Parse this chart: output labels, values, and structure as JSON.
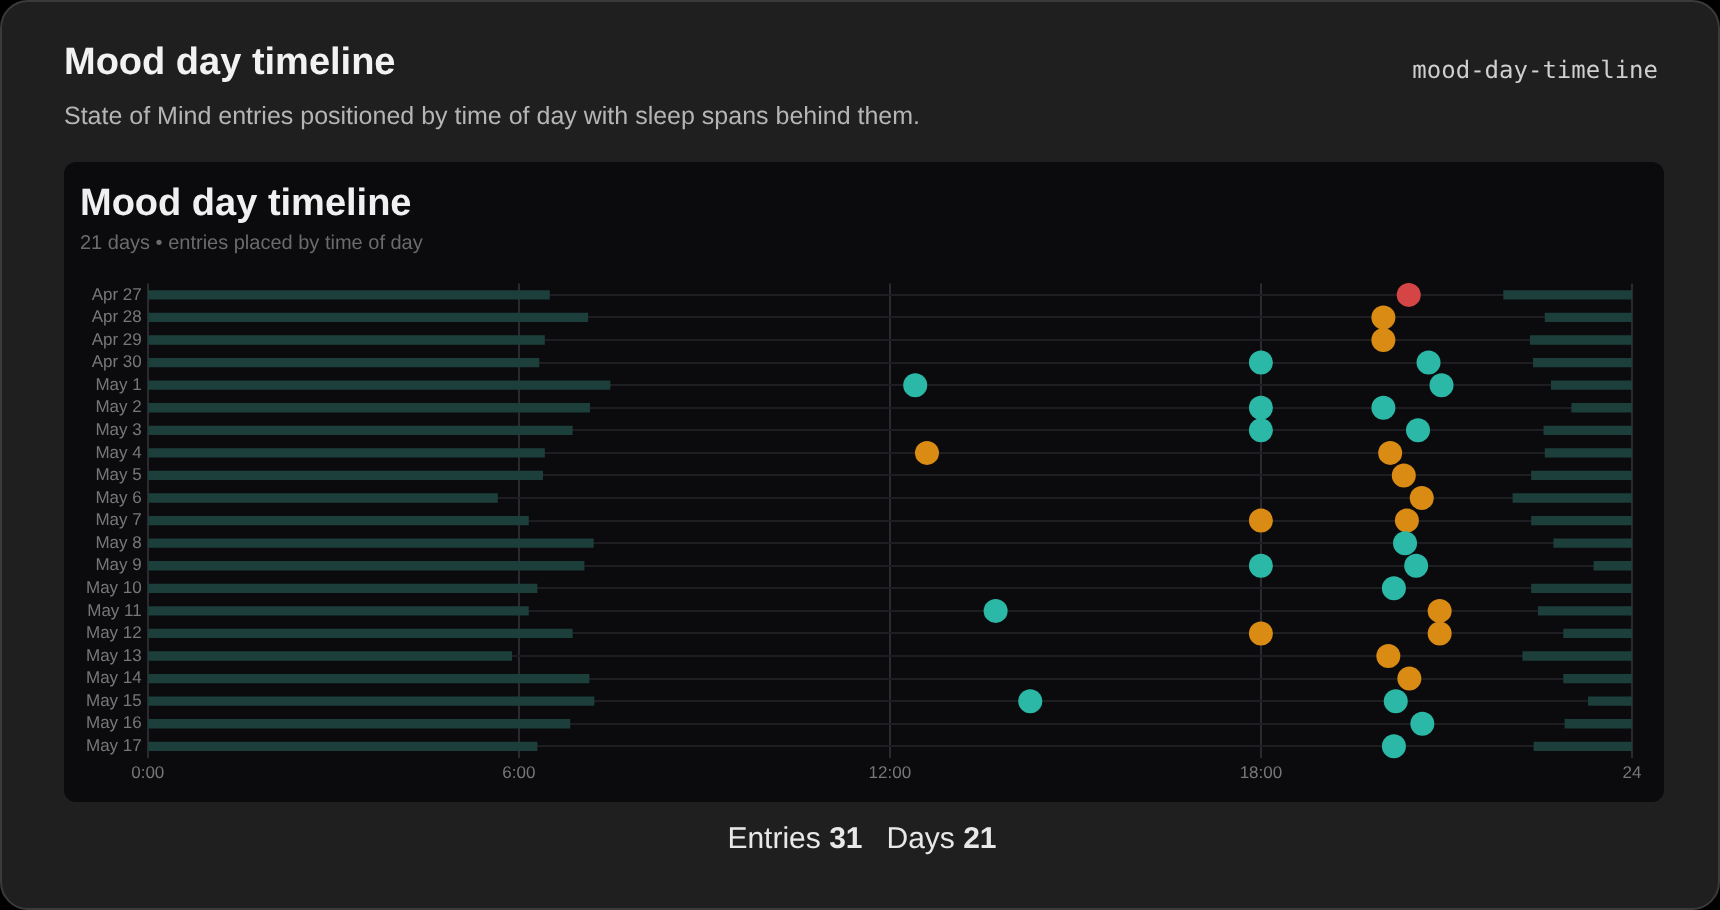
{
  "chart_data": {
    "type": "bar",
    "orientation": "horizontal",
    "title": "Mood day timeline",
    "subtitle": "21 days • entries placed by time of day",
    "annotations": [
      "Mood day timeline",
      "State of Mind entries positioned by time of day with sleep spans behind them.",
      "mood-day-timeline",
      "Entries 31",
      "Days 21"
    ],
    "categories": [
      "Apr 27",
      "Apr 28",
      "Apr 29",
      "Apr 30",
      "May 1",
      "May 2",
      "May 3",
      "May 4",
      "May 5",
      "May 6",
      "May 7",
      "May 8",
      "May 9",
      "May 10",
      "May 11",
      "May 12",
      "May 13",
      "May 14",
      "May 15",
      "May 16",
      "May 17"
    ],
    "series": [
      {
        "type": "bar",
        "color": "#1c3f3b",
        "base": [
          0,
          0,
          0,
          0,
          0,
          0,
          0,
          0,
          0,
          0,
          0,
          0,
          0,
          0,
          0,
          0,
          0,
          0,
          0,
          0,
          0
        ],
        "values": [
          6.49,
          7.11,
          6.41,
          6.32,
          7.47,
          7.14,
          6.86,
          6.41,
          6.38,
          5.65,
          6.15,
          7.2,
          7.05,
          6.29,
          6.15,
          6.86,
          5.88,
          7.13,
          7.21,
          6.82,
          6.29
        ]
      },
      {
        "type": "bar",
        "color": "#1c3f3b",
        "base": [
          21.93,
          22.6,
          22.36,
          22.41,
          22.7,
          23.03,
          22.58,
          22.6,
          22.38,
          22.08,
          22.38,
          22.74,
          23.39,
          22.38,
          22.49,
          22.9,
          22.24,
          22.9,
          23.3,
          22.92,
          22.42
        ],
        "values": [
          2.07,
          1.4,
          1.64,
          1.59,
          1.3,
          0.97,
          1.42,
          1.4,
          1.62,
          1.92,
          1.62,
          1.26,
          0.61,
          1.62,
          1.51,
          1.1,
          1.76,
          1.1,
          0.7,
          1.08,
          1.58
        ]
      },
      {
        "type": "scatter",
        "marker": "circle",
        "x": [
          "Apr 27",
          "Apr 28",
          "Apr 29",
          "Apr 30",
          "Apr 30",
          "May 1",
          "May 1",
          "May 2",
          "May 2",
          "May 3",
          "May 3",
          "May 4",
          "May 4",
          "May 5",
          "May 6",
          "May 7",
          "May 7",
          "May 8",
          "May 9",
          "May 9",
          "May 10",
          "May 11",
          "May 11",
          "May 12",
          "May 12",
          "May 13",
          "May 14",
          "May 15",
          "May 15",
          "May 16",
          "May 17"
        ],
        "values": [
          20.39,
          19.98,
          19.98,
          18.0,
          20.71,
          12.41,
          20.92,
          18.0,
          19.98,
          18.0,
          20.54,
          12.6,
          20.09,
          20.31,
          20.6,
          18.0,
          20.36,
          20.33,
          18.0,
          20.51,
          20.15,
          13.71,
          20.89,
          18.0,
          20.89,
          20.06,
          20.4,
          14.27,
          20.18,
          20.61,
          20.15
        ],
        "colors": [
          "#d64545",
          "#d98b14",
          "#d98b14",
          "#2bb8a6",
          "#2bb8a6",
          "#2bb8a6",
          "#2bb8a6",
          "#2bb8a6",
          "#2bb8a6",
          "#2bb8a6",
          "#2bb8a6",
          "#d98b14",
          "#d98b14",
          "#d98b14",
          "#d98b14",
          "#d98b14",
          "#d98b14",
          "#2bb8a6",
          "#2bb8a6",
          "#2bb8a6",
          "#2bb8a6",
          "#2bb8a6",
          "#d98b14",
          "#d98b14",
          "#d98b14",
          "#d98b14",
          "#d98b14",
          "#2bb8a6",
          "#2bb8a6",
          "#2bb8a6",
          "#2bb8a6"
        ]
      }
    ],
    "xlim": [
      0,
      24
    ],
    "xticks": [
      {
        "value": 0,
        "label": "0:00"
      },
      {
        "value": 6,
        "label": "6:00"
      },
      {
        "value": 12,
        "label": "12:00"
      },
      {
        "value": 18,
        "label": "18:00"
      },
      24
    ],
    "grid": true,
    "legend": false
  }
}
